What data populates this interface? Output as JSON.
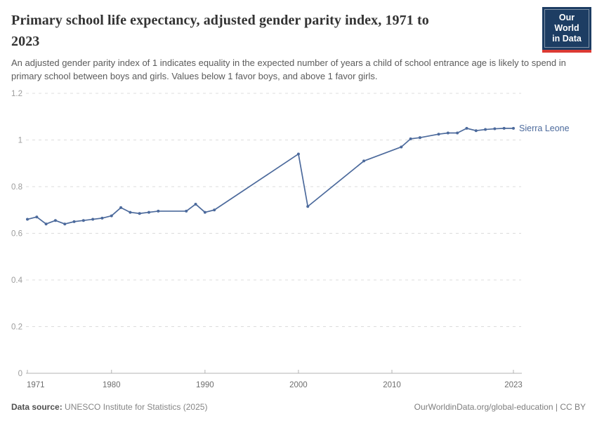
{
  "header": {
    "title": "Primary school life expectancy, adjusted gender parity index, 1971 to 2023",
    "title_lines": [
      "Primary school life expectancy, adjusted gender parity index, 1971 to",
      "2023"
    ],
    "subtitle": "An adjusted gender parity index of 1 indicates equality in the expected number of years a child of school entrance age is likely to spend in primary school between boys and girls. Values below 1 favor boys, and above 1 favor girls.",
    "logo": {
      "line1": "Our World",
      "line2": "in Data"
    }
  },
  "footer": {
    "source_label": "Data source:",
    "source_text": " UNESCO Institute for Statistics (2025)",
    "right_text": "OurWorldinData.org/global-education | CC BY"
  },
  "colors": {
    "series_blue": "#4C6A9C",
    "grid": "#dcdcdc",
    "axis": "#b3b3b3",
    "x_label": "#6e6e6e",
    "y_label": "#9c9c9c",
    "logo_navy": "#1d3d63",
    "logo_red": "#dc3a33"
  },
  "chart_data": {
    "type": "line",
    "title": "Primary school life expectancy, adjusted gender parity index, 1971 to 2023",
    "xlabel": "",
    "ylabel": "",
    "xlim": [
      1971,
      2023
    ],
    "ylim": [
      0,
      1.2
    ],
    "x_ticks": [
      1971,
      1980,
      1990,
      2000,
      2010,
      2023
    ],
    "y_ticks": [
      0,
      0.2,
      0.4,
      0.6,
      0.8,
      1,
      1.2
    ],
    "grid": "dashed-horizontal",
    "legend": "end-of-line-label",
    "x": [
      1971,
      1972,
      1973,
      1974,
      1975,
      1976,
      1977,
      1978,
      1979,
      1980,
      1981,
      1982,
      1983,
      1984,
      1985,
      1988,
      1989,
      1990,
      1991,
      2000,
      2001,
      2007,
      2011,
      2012,
      2013,
      2015,
      2016,
      2017,
      2018,
      2019,
      2020,
      2021,
      2022,
      2023
    ],
    "series": [
      {
        "name": "Sierra Leone",
        "values": [
          0.66,
          0.67,
          0.64,
          0.655,
          0.64,
          0.65,
          0.655,
          0.66,
          0.665,
          0.675,
          0.71,
          0.69,
          0.685,
          0.69,
          0.695,
          0.695,
          0.725,
          0.69,
          0.7,
          0.94,
          0.715,
          0.91,
          0.97,
          1.005,
          1.01,
          1.025,
          1.03,
          1.03,
          1.05,
          1.04,
          1.045,
          1.048,
          1.05,
          1.05
        ]
      }
    ]
  }
}
